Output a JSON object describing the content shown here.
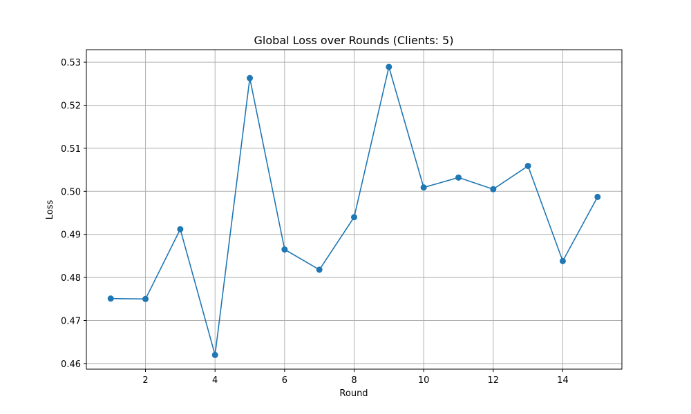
{
  "chart_data": {
    "type": "line",
    "title": "Global Loss over Rounds (Clients: 5)",
    "xlabel": "Round",
    "ylabel": "Loss",
    "xlim": [
      0.3,
      15.7
    ],
    "ylim": [
      0.4587,
      0.5329
    ],
    "x_ticks": [
      2,
      4,
      6,
      8,
      10,
      12,
      14
    ],
    "x_tick_labels": [
      "2",
      "4",
      "6",
      "8",
      "10",
      "12",
      "14"
    ],
    "y_ticks": [
      0.46,
      0.47,
      0.48,
      0.49,
      0.5,
      0.51,
      0.52,
      0.53
    ],
    "y_tick_labels": [
      "0.46",
      "0.47",
      "0.48",
      "0.49",
      "0.50",
      "0.51",
      "0.52",
      "0.53"
    ],
    "grid": true,
    "marker": "circle",
    "series": [
      {
        "color": "#1f77b4",
        "x": [
          1,
          2,
          3,
          4,
          5,
          6,
          7,
          8,
          9,
          10,
          11,
          12,
          13,
          14,
          15
        ],
        "values": [
          0.4751,
          0.475,
          0.4912,
          0.462,
          0.5263,
          0.4865,
          0.4818,
          0.494,
          0.5289,
          0.5009,
          0.5032,
          0.5005,
          0.5059,
          0.4838,
          0.4987
        ]
      }
    ]
  }
}
